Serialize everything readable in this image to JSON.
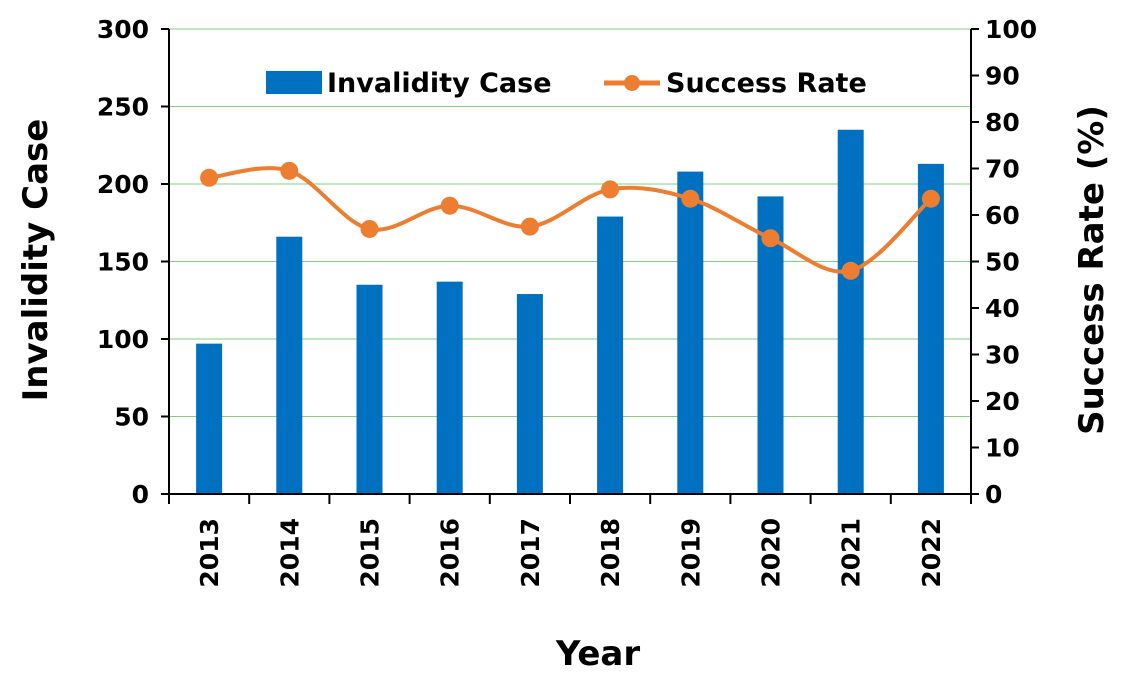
{
  "chart_data": {
    "type": "bar+line",
    "categories": [
      "2013",
      "2014",
      "2015",
      "2016",
      "2017",
      "2018",
      "2019",
      "2020",
      "2021",
      "2022"
    ],
    "series": [
      {
        "name": "Invalidity Case",
        "type": "bar",
        "axis": "left",
        "color": "#0070c0",
        "values": [
          97,
          166,
          135,
          137,
          129,
          179,
          208,
          192,
          235,
          213
        ]
      },
      {
        "name": "Success Rate",
        "type": "line",
        "axis": "right",
        "color": "#ed7d31",
        "smooth": true,
        "values": [
          68,
          69.5,
          57,
          62,
          57.5,
          65.5,
          63.5,
          55,
          48,
          63.5
        ]
      }
    ],
    "xlabel": "Year",
    "ylabel": "Invalidity Case",
    "y2label": "Success Rate (%)",
    "ylim": [
      0,
      300
    ],
    "yticks": [
      "0",
      "50",
      "100",
      "150",
      "200",
      "250",
      "300"
    ],
    "y2lim": [
      0,
      100
    ],
    "y2ticks": [
      "0",
      "10",
      "20",
      "30",
      "40",
      "50",
      "60",
      "70",
      "80",
      "90",
      "100"
    ],
    "grid": true,
    "legend": "top-center"
  }
}
